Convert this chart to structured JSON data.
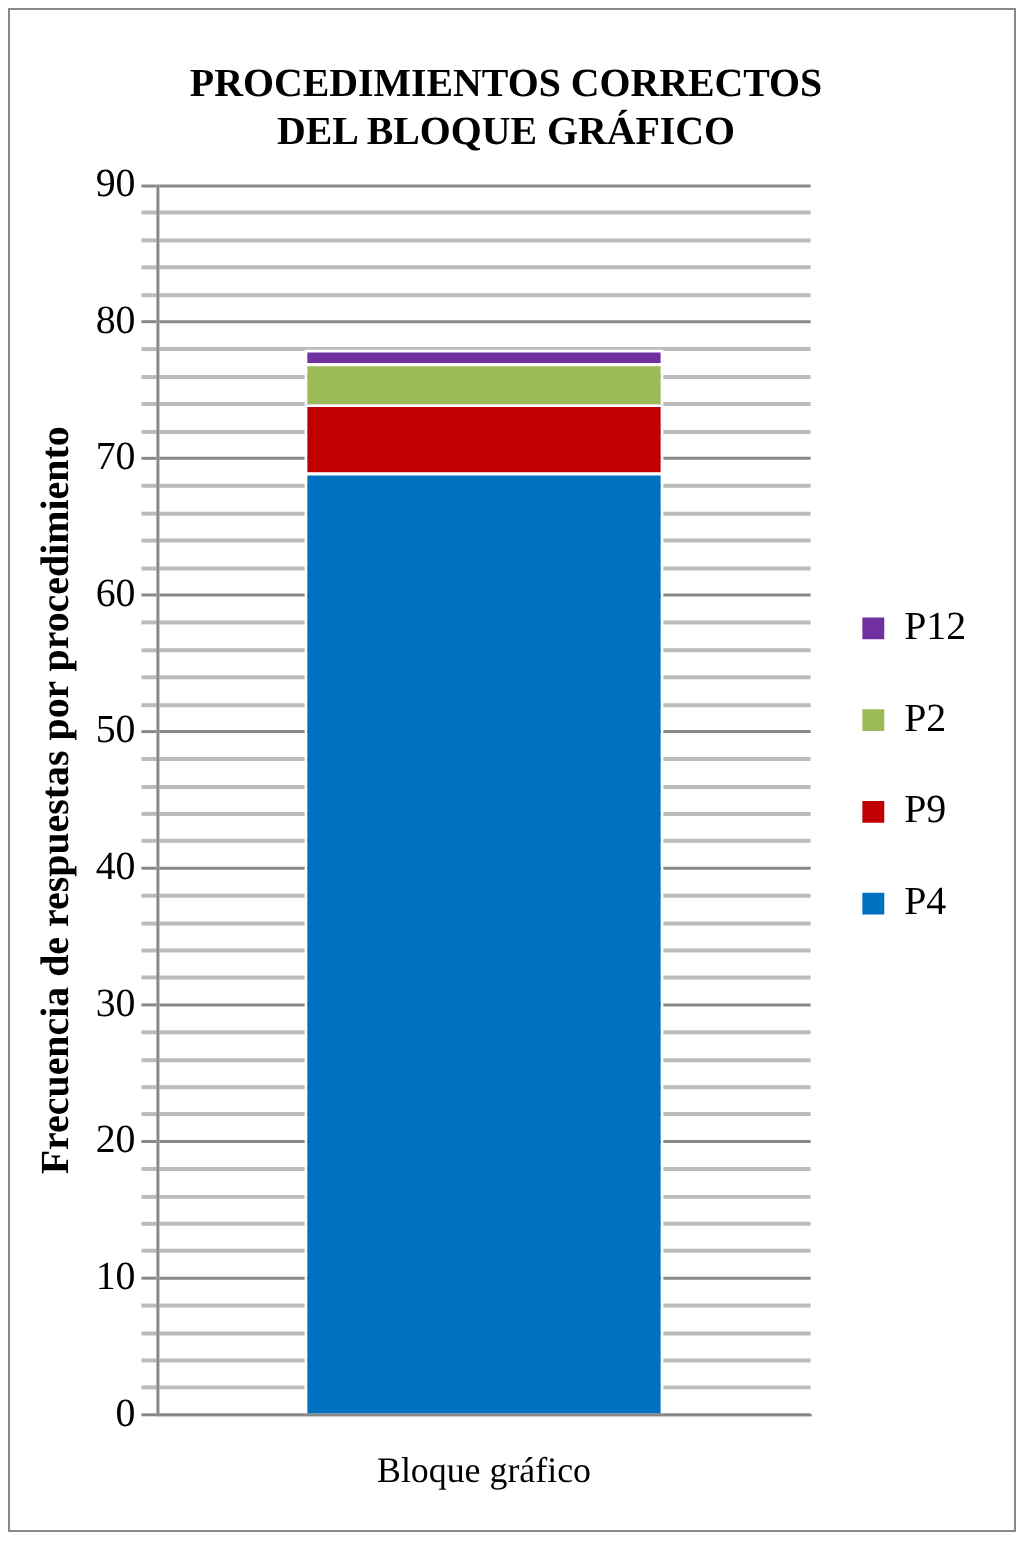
{
  "chart_data": {
    "type": "bar",
    "title": "PROCEDIMIENTOS CORRECTOS\nDEL BLOQUE GRÁFICO",
    "ylabel": "Frecuencia de respuestas por procedimiento",
    "categories": [
      "Bloque gráfico"
    ],
    "stacked": true,
    "series": [
      {
        "name": "P4",
        "color": "#0070c0",
        "values": [
          69
        ]
      },
      {
        "name": "P9",
        "color": "#c00000",
        "values": [
          5
        ]
      },
      {
        "name": "P2",
        "color": "#9bbb59",
        "values": [
          3
        ]
      },
      {
        "name": "P12",
        "color": "#7030a0",
        "values": [
          1
        ]
      }
    ],
    "ylim": [
      0,
      90
    ],
    "yticks": [
      0,
      {
        "value": 2,
        "label": null
      },
      {
        "value": 4,
        "label": null
      },
      {
        "value": 6,
        "label": null
      },
      {
        "value": 8,
        "label": null
      },
      10,
      {
        "value": 12,
        "label": null
      },
      {
        "value": 14,
        "label": null
      },
      {
        "value": 16,
        "label": null
      },
      {
        "value": 18,
        "label": null
      },
      20,
      {
        "value": 22,
        "label": null
      },
      {
        "value": 24,
        "label": null
      },
      {
        "value": 26,
        "label": null
      },
      {
        "value": 28,
        "label": null
      },
      30,
      {
        "value": 32,
        "label": null
      },
      {
        "value": 34,
        "label": null
      },
      {
        "value": 36,
        "label": null
      },
      {
        "value": 38,
        "label": null
      },
      40,
      {
        "value": 42,
        "label": null
      },
      {
        "value": 44,
        "label": null
      },
      {
        "value": 46,
        "label": null
      },
      {
        "value": 48,
        "label": null
      },
      50,
      {
        "value": 52,
        "label": null
      },
      {
        "value": 54,
        "label": null
      },
      {
        "value": 56,
        "label": null
      },
      {
        "value": 58,
        "label": null
      },
      60,
      {
        "value": 62,
        "label": null
      },
      {
        "value": 64,
        "label": null
      },
      {
        "value": 66,
        "label": null
      },
      {
        "value": 68,
        "label": null
      },
      70,
      {
        "value": 72,
        "label": null
      },
      {
        "value": 74,
        "label": null
      },
      {
        "value": 76,
        "label": null
      },
      {
        "value": 78,
        "label": null
      },
      80,
      {
        "value": 82,
        "label": null
      },
      {
        "value": 84,
        "label": null
      },
      {
        "value": 86,
        "label": null
      },
      {
        "value": 88,
        "label": null
      },
      90
    ],
    "grid": true,
    "legend": "right"
  }
}
